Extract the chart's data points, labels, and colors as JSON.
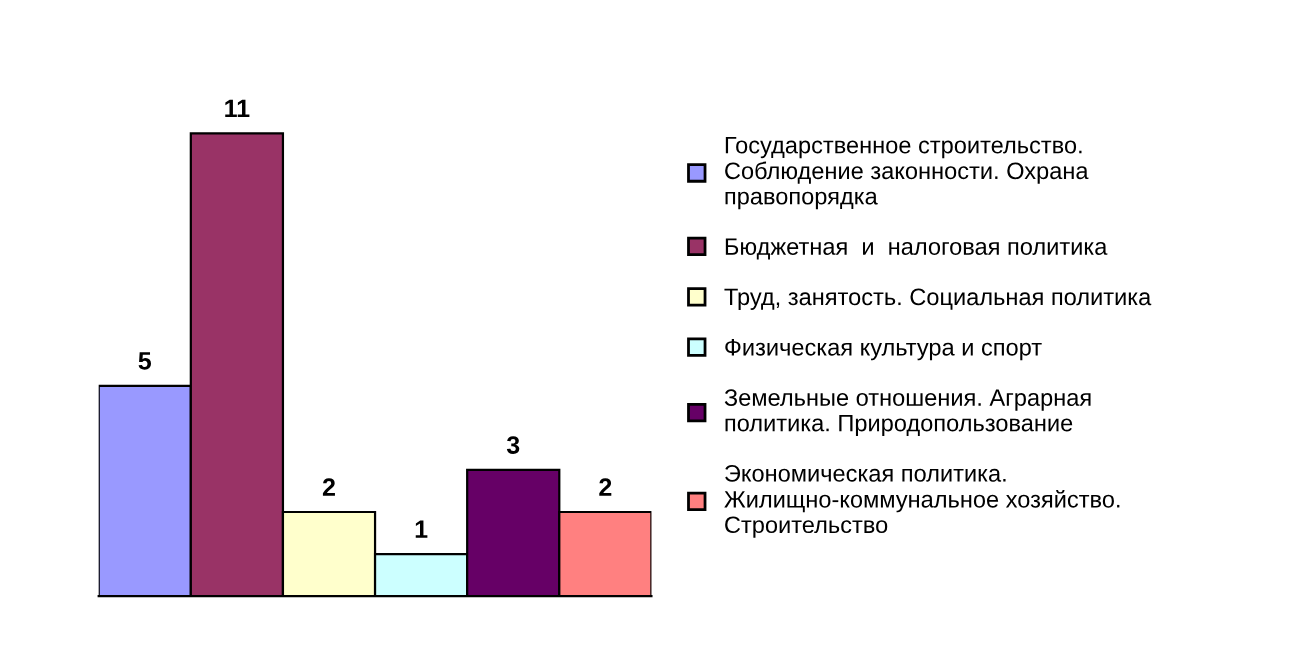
{
  "chart_data": {
    "type": "bar",
    "categories": [
      null
    ],
    "series": [
      {
        "name": "Государственное строительство. Соблюдение законности. Охрана правопорядка",
        "color": "#9999ff",
        "values": [
          5
        ]
      },
      {
        "name": "Бюджетная  и  налоговая политика",
        "color": "#993366",
        "values": [
          11
        ]
      },
      {
        "name": "Труд, занятость. Социальная политика",
        "color": "#ffffcc",
        "values": [
          2
        ]
      },
      {
        "name": "Физическая культура и спорт",
        "color": "#ccffff",
        "values": [
          1
        ]
      },
      {
        "name": "Земельные отношения. Аграрная политика. Природопользование",
        "color": "#660066",
        "values": [
          3
        ]
      },
      {
        "name": "Экономическая политика. Жилищно-коммунальное хозяйство. Строительство",
        "color": "#ff8080",
        "values": [
          2
        ]
      }
    ],
    "data_labels": true,
    "legend": "right",
    "grid": false
  }
}
